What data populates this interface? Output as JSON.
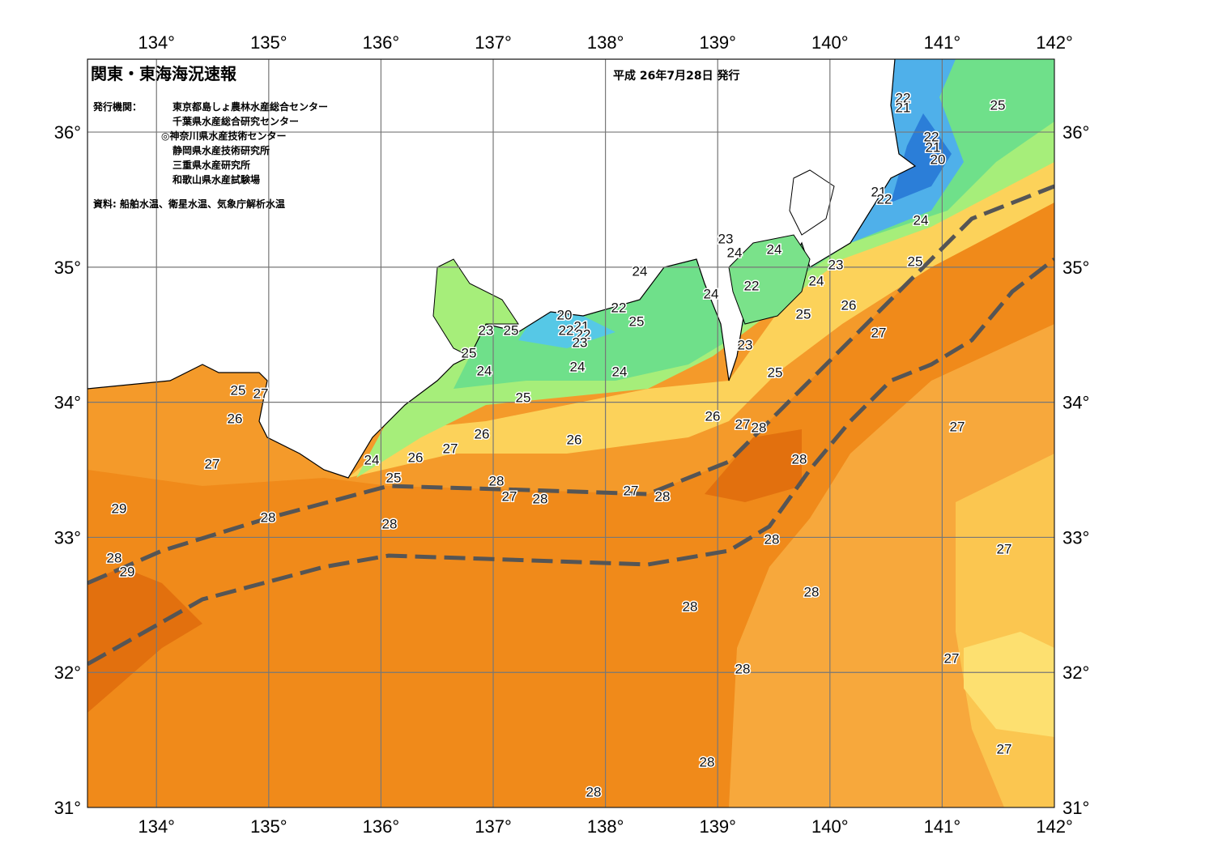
{
  "header": {
    "title": "関東・東海海況速報",
    "date": "平成 26年7月28日 発行",
    "issuer_label": "発行機関：",
    "issuers": [
      "東京都島しょ農林水産総合センター",
      "千葉県水産総合研究センター",
      "◎神奈川県水産技術センター",
      "静岡県水産技術研究所",
      "三重県水産研究所",
      "和歌山県水産試験場"
    ],
    "source": "資料: 船舶水温、衛星水温、気象庁解析水温"
  },
  "map": {
    "lonlim": [
      133.385,
      142
    ],
    "latlim": [
      31,
      36.54
    ],
    "lonticks": [
      {
        "value": 134,
        "label": "134°"
      },
      {
        "value": 135,
        "label": "135°"
      },
      {
        "value": 136,
        "label": "136°"
      },
      {
        "value": 137,
        "label": "137°"
      },
      {
        "value": 138,
        "label": "138°"
      },
      {
        "value": 139,
        "label": "139°"
      },
      {
        "value": 140,
        "label": "140°"
      },
      {
        "value": 141,
        "label": "141°"
      },
      {
        "value": 142,
        "label": "142°"
      }
    ],
    "latticks": [
      {
        "value": 31,
        "label": "31°"
      },
      {
        "value": 32,
        "label": "32°"
      },
      {
        "value": 33,
        "label": "33°"
      },
      {
        "value": 34,
        "label": "34°"
      },
      {
        "value": 35,
        "label": "35°"
      },
      {
        "value": 36,
        "label": "36°"
      }
    ],
    "contour_labels": [
      22,
      21,
      25,
      22,
      21,
      20,
      21,
      22,
      24,
      23,
      24,
      24,
      25,
      23,
      24,
      24,
      22,
      24,
      26,
      20,
      22,
      25,
      25,
      23,
      25,
      22,
      21,
      22,
      23,
      27,
      25,
      23,
      24,
      24,
      24,
      25,
      25,
      26,
      27,
      28,
      27,
      26,
      26,
      27,
      26,
      24,
      28,
      25,
      27,
      25,
      27,
      26,
      28,
      27,
      28,
      27,
      28,
      29,
      28,
      28,
      28,
      27,
      28,
      29,
      28,
      28,
      27,
      28,
      27,
      28,
      28
    ]
  }
}
